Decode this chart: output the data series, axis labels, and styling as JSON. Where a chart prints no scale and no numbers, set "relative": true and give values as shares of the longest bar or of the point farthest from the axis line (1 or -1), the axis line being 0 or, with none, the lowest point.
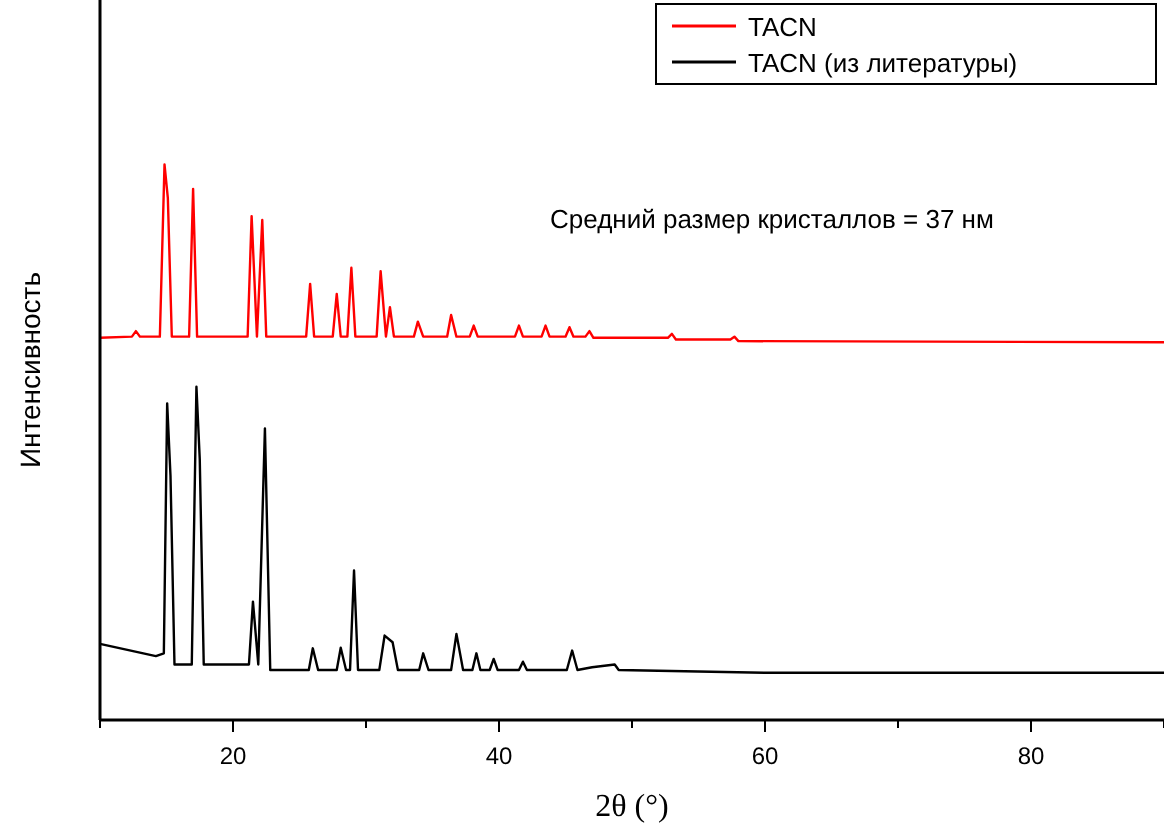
{
  "chart_data": {
    "type": "line",
    "relative": true,
    "xlabel": "2θ (°)",
    "ylabel": "Интенсивность",
    "xlim": [
      10,
      90
    ],
    "xticks": [
      {
        "value": 10,
        "label": null
      },
      20,
      {
        "value": 30,
        "label": null
      },
      40,
      {
        "value": 50,
        "label": null
      },
      60,
      {
        "value": 70,
        "label": null
      },
      80,
      {
        "value": 90,
        "label": null
      }
    ],
    "legend": "top right",
    "grid": false,
    "marker": "none",
    "line_style": "solid",
    "annotations": [
      "Средний размер кристаллов = 37 нм"
    ],
    "series": [
      {
        "name": "TACN",
        "color": "#ff0000",
        "x": [
          10,
          12.4,
          12.7,
          13.0,
          14.5,
          14.85,
          15.1,
          15.4,
          16.7,
          17.0,
          17.3,
          21.1,
          21.4,
          21.8,
          22.2,
          22.5,
          25.5,
          25.8,
          26.1,
          27.5,
          27.8,
          28.1,
          28.6,
          28.9,
          29.2,
          30.8,
          31.1,
          31.5,
          31.8,
          32.1,
          33.6,
          33.9,
          34.3,
          36.1,
          36.4,
          36.8,
          37.8,
          38.1,
          38.4,
          41.2,
          41.5,
          41.8,
          43.2,
          43.5,
          43.8,
          45.0,
          45.3,
          45.6,
          46.5,
          46.8,
          47.1,
          52.7,
          53.0,
          53.3,
          57.4,
          57.7,
          58,
          90
        ],
        "values": [
          0.688,
          0.69,
          0.7,
          0.69,
          0.69,
          1.0,
          0.94,
          0.69,
          0.69,
          0.956,
          0.69,
          0.69,
          0.907,
          0.69,
          0.9,
          0.69,
          0.69,
          0.785,
          0.69,
          0.69,
          0.767,
          0.69,
          0.69,
          0.814,
          0.69,
          0.69,
          0.808,
          0.69,
          0.743,
          0.69,
          0.69,
          0.717,
          0.69,
          0.69,
          0.729,
          0.69,
          0.69,
          0.71,
          0.69,
          0.69,
          0.71,
          0.69,
          0.69,
          0.71,
          0.69,
          0.69,
          0.707,
          0.69,
          0.69,
          0.7,
          0.688,
          0.688,
          0.695,
          0.685,
          0.685,
          0.69,
          0.682,
          0.68
        ]
      },
      {
        "name": "TACN (из литературы)",
        "color": "#000000",
        "x": [
          10,
          14.2,
          14.8,
          15.05,
          15.3,
          15.6,
          16.9,
          17.25,
          17.5,
          17.8,
          21.2,
          21.5,
          21.9,
          22.4,
          22.8,
          25.7,
          26.0,
          26.4,
          27.8,
          28.1,
          28.5,
          28.8,
          29.1,
          29.4,
          31.0,
          31.4,
          32.0,
          32.4,
          34.0,
          34.3,
          34.7,
          36.4,
          36.8,
          37.3,
          38.0,
          38.3,
          38.6,
          39.3,
          39.6,
          39.9,
          41.5,
          41.8,
          42.1,
          45.1,
          45.5,
          45.9,
          47.0,
          48.7,
          49,
          60,
          90
        ],
        "values": [
          0.137,
          0.115,
          0.12,
          0.57,
          0.44,
          0.1,
          0.1,
          0.6,
          0.47,
          0.1,
          0.1,
          0.213,
          0.1,
          0.525,
          0.09,
          0.09,
          0.129,
          0.09,
          0.09,
          0.13,
          0.09,
          0.09,
          0.269,
          0.09,
          0.09,
          0.152,
          0.14,
          0.09,
          0.09,
          0.12,
          0.09,
          0.09,
          0.155,
          0.09,
          0.09,
          0.12,
          0.09,
          0.09,
          0.11,
          0.09,
          0.09,
          0.105,
          0.09,
          0.09,
          0.125,
          0.09,
          0.095,
          0.1,
          0.09,
          0.085,
          0.085
        ]
      }
    ]
  }
}
